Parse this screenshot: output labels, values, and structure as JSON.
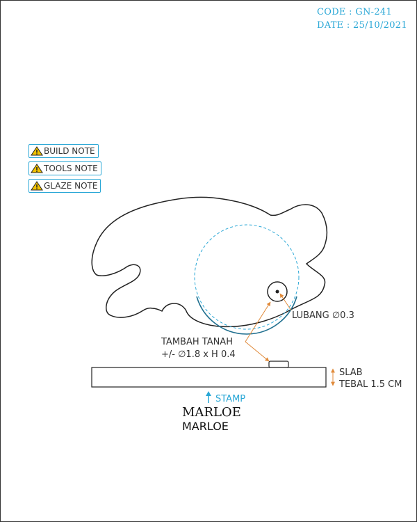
{
  "header": {
    "code": "CODE : GN-241",
    "date": "DATE : 25/10/2021"
  },
  "notes": [
    {
      "label": "BUILD NOTE"
    },
    {
      "label": "TOOLS NOTE"
    },
    {
      "label": "GLAZE NOTE"
    }
  ],
  "annotations": {
    "hole": "LUBANG ∅0.3",
    "add_clay_line1": "TAMBAH TANAH",
    "add_clay_line2": "+/- ∅1.8 x H 0.4",
    "slab_line1": "SLAB",
    "slab_line2": "TEBAL 1.5 CM",
    "stamp": "STAMP"
  },
  "logo": {
    "line1": "MARLOE",
    "line2": "MARLOE"
  },
  "colors": {
    "accent": "#29a7d6",
    "dimension": "#e08a3a",
    "outline": "#222222"
  },
  "icons": {
    "note": "warning-icon",
    "stamp_arrow": "arrow-up-icon"
  }
}
